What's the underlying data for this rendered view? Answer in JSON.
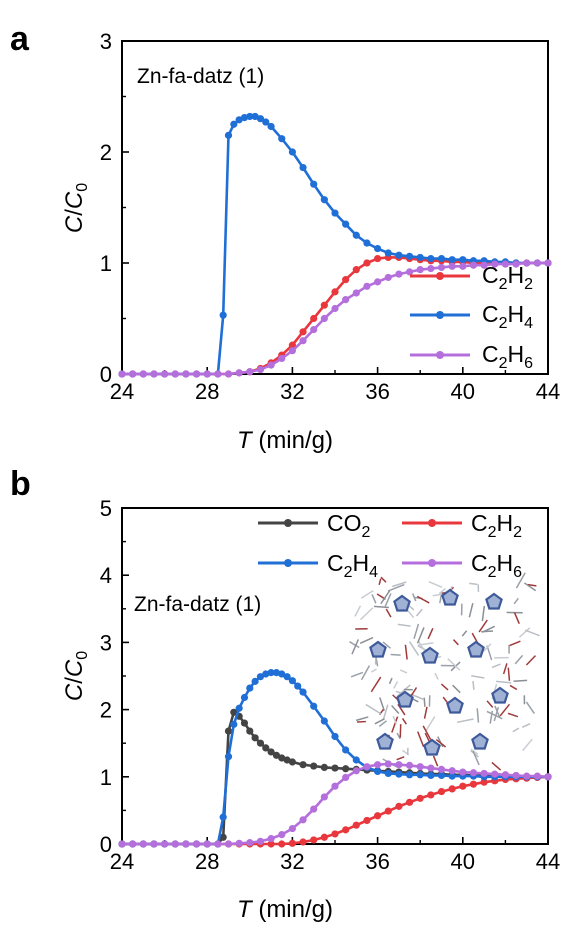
{
  "chart_data": [
    {
      "panel": "a",
      "type": "line",
      "annotation": "Zn-fa-datz (1)",
      "xlabel_italic": "T",
      "xlabel_unit": " (min/g)",
      "ylabel_italic_main": "C",
      "ylabel_italic_sub": "0",
      "xlim": [
        24,
        44
      ],
      "ylim": [
        0,
        3
      ],
      "xticks": [
        "24",
        "28",
        "32",
        "36",
        "40",
        "44"
      ],
      "yticks": [
        "0",
        "1",
        "2",
        "3"
      ],
      "legend_position": "bottom-right",
      "series": [
        {
          "label_main": "C",
          "label_s1": "2",
          "label_mid": "H",
          "label_s2": "2",
          "color": "#e8383d",
          "x": [
            24.0,
            24.5,
            25.0,
            25.5,
            26.0,
            26.5,
            27.0,
            27.5,
            28.0,
            28.5,
            29.0,
            29.5,
            30.0,
            30.5,
            31.0,
            31.5,
            32.0,
            32.5,
            33.0,
            33.5,
            34.0,
            34.5,
            35.0,
            35.5,
            36.0,
            36.5,
            37.0,
            37.5,
            38.0,
            38.5,
            39.0,
            39.5,
            40.0,
            40.5,
            41.0,
            41.5,
            42.0,
            42.5,
            43.0,
            43.5,
            44.0
          ],
          "y": [
            0.0,
            0.0,
            0.0,
            0.0,
            0.0,
            0.0,
            0.0,
            0.0,
            0.0,
            0.0,
            0.0,
            0.01,
            0.02,
            0.05,
            0.1,
            0.17,
            0.26,
            0.38,
            0.5,
            0.62,
            0.74,
            0.85,
            0.94,
            1.0,
            1.04,
            1.05,
            1.05,
            1.04,
            1.03,
            1.02,
            1.02,
            1.01,
            1.01,
            1.0,
            1.0,
            1.0,
            1.0,
            1.0,
            1.0,
            1.0,
            1.0
          ]
        },
        {
          "label_main": "C",
          "label_s1": "2",
          "label_mid": "H",
          "label_s2": "4",
          "color": "#1f6fd6",
          "x": [
            24.0,
            24.5,
            25.0,
            25.5,
            26.0,
            26.5,
            27.0,
            27.5,
            28.0,
            28.5,
            28.75,
            29.0,
            29.25,
            29.5,
            29.75,
            30.0,
            30.25,
            30.5,
            30.75,
            31.0,
            31.5,
            32.0,
            32.5,
            33.0,
            33.5,
            34.0,
            34.5,
            35.0,
            35.5,
            36.0,
            36.5,
            37.0,
            37.5,
            38.0,
            38.5,
            39.0,
            39.5,
            40.0,
            40.5,
            41.0,
            41.5,
            42.0,
            42.5,
            43.0,
            43.5,
            44.0
          ],
          "y": [
            0.0,
            0.0,
            0.0,
            0.0,
            0.0,
            0.0,
            0.0,
            0.0,
            0.0,
            0.0,
            0.53,
            2.15,
            2.25,
            2.29,
            2.31,
            2.32,
            2.32,
            2.3,
            2.27,
            2.23,
            2.12,
            2.0,
            1.86,
            1.71,
            1.57,
            1.45,
            1.35,
            1.25,
            1.18,
            1.13,
            1.09,
            1.07,
            1.06,
            1.05,
            1.04,
            1.04,
            1.03,
            1.03,
            1.02,
            1.02,
            1.01,
            1.01,
            1.0,
            1.0,
            1.0,
            1.0
          ]
        },
        {
          "label_main": "C",
          "label_s1": "2",
          "label_mid": "H",
          "label_s2": "6",
          "color": "#b56fdc",
          "x": [
            24.0,
            24.5,
            25.0,
            25.5,
            26.0,
            26.5,
            27.0,
            27.5,
            28.0,
            28.5,
            29.0,
            29.5,
            30.0,
            30.5,
            31.0,
            31.5,
            32.0,
            32.5,
            33.0,
            33.5,
            34.0,
            34.5,
            35.0,
            35.5,
            36.0,
            36.5,
            37.0,
            37.5,
            38.0,
            38.5,
            39.0,
            39.5,
            40.0,
            40.5,
            41.0,
            41.5,
            42.0,
            42.5,
            43.0,
            43.5,
            44.0
          ],
          "y": [
            0.0,
            0.0,
            0.0,
            0.0,
            0.0,
            0.0,
            0.0,
            0.0,
            0.0,
            0.0,
            0.0,
            0.01,
            0.02,
            0.04,
            0.08,
            0.14,
            0.21,
            0.3,
            0.4,
            0.5,
            0.59,
            0.67,
            0.73,
            0.79,
            0.83,
            0.87,
            0.9,
            0.92,
            0.94,
            0.95,
            0.96,
            0.97,
            0.97,
            0.98,
            0.98,
            0.99,
            0.99,
            0.99,
            1.0,
            1.0,
            1.0
          ]
        }
      ]
    },
    {
      "panel": "b",
      "type": "line",
      "annotation": "Zn-fa-datz (1)",
      "xlabel_italic": "T",
      "xlabel_unit": " (min/g)",
      "ylabel_italic_main": "C",
      "ylabel_italic_sub": "0",
      "xlim": [
        24,
        44
      ],
      "ylim": [
        0,
        5
      ],
      "xticks": [
        "24",
        "28",
        "32",
        "36",
        "40",
        "44"
      ],
      "yticks": [
        "0",
        "1",
        "2",
        "3",
        "4",
        "5"
      ],
      "legend_position": "top",
      "inset": "crystal-structure-image",
      "series": [
        {
          "label_main": "CO",
          "label_s1": "2",
          "label_mid": "",
          "label_s2": "",
          "color": "#444444",
          "x": [
            24.0,
            24.5,
            25.0,
            25.5,
            26.0,
            26.5,
            27.0,
            27.5,
            28.0,
            28.5,
            28.75,
            29.0,
            29.25,
            29.5,
            29.75,
            30.0,
            30.25,
            30.5,
            30.75,
            31.0,
            31.25,
            31.5,
            31.75,
            32.0,
            32.5,
            33.0,
            33.5,
            34.0,
            34.5,
            35.0,
            35.5,
            36.0,
            36.5,
            37.0,
            37.5,
            38.0,
            38.5,
            39.0,
            39.5,
            40.0,
            40.5,
            41.0,
            41.5,
            42.0,
            42.5,
            43.0,
            43.5,
            44.0
          ],
          "y": [
            0.0,
            0.0,
            0.0,
            0.0,
            0.0,
            0.0,
            0.0,
            0.0,
            0.0,
            0.0,
            0.1,
            1.68,
            1.96,
            1.9,
            1.8,
            1.68,
            1.58,
            1.5,
            1.43,
            1.37,
            1.32,
            1.28,
            1.25,
            1.22,
            1.18,
            1.16,
            1.14,
            1.13,
            1.12,
            1.11,
            1.1,
            1.09,
            1.08,
            1.07,
            1.06,
            1.05,
            1.04,
            1.04,
            1.03,
            1.03,
            1.02,
            1.02,
            1.01,
            1.01,
            1.0,
            1.0,
            1.0,
            1.0
          ]
        },
        {
          "label_main": "C",
          "label_s1": "2",
          "label_mid": "H",
          "label_s2": "2",
          "color": "#e8383d",
          "x": [
            24.0,
            24.5,
            25.0,
            25.5,
            26.0,
            26.5,
            27.0,
            27.5,
            28.0,
            28.5,
            29.0,
            29.5,
            30.0,
            30.5,
            31.0,
            31.5,
            32.0,
            32.5,
            33.0,
            33.5,
            34.0,
            34.5,
            35.0,
            35.5,
            36.0,
            36.5,
            37.0,
            37.5,
            38.0,
            38.5,
            39.0,
            39.5,
            40.0,
            40.5,
            41.0,
            41.5,
            42.0,
            42.5,
            43.0,
            43.5,
            44.0
          ],
          "y": [
            0.0,
            0.0,
            0.0,
            0.0,
            0.0,
            0.0,
            0.0,
            0.0,
            0.0,
            0.0,
            0.0,
            0.0,
            0.0,
            0.0,
            0.0,
            0.0,
            0.01,
            0.03,
            0.06,
            0.1,
            0.15,
            0.21,
            0.28,
            0.35,
            0.42,
            0.49,
            0.56,
            0.62,
            0.68,
            0.73,
            0.78,
            0.82,
            0.86,
            0.89,
            0.92,
            0.94,
            0.96,
            0.97,
            0.98,
            0.99,
            1.0
          ]
        },
        {
          "label_main": "C",
          "label_s1": "2",
          "label_mid": "H",
          "label_s2": "4",
          "color": "#1f6fd6",
          "x": [
            24.0,
            24.5,
            25.0,
            25.5,
            26.0,
            26.5,
            27.0,
            27.5,
            28.0,
            28.5,
            28.75,
            29.0,
            29.25,
            29.5,
            29.75,
            30.0,
            30.25,
            30.5,
            30.75,
            31.0,
            31.25,
            31.5,
            31.75,
            32.0,
            32.25,
            32.5,
            33.0,
            33.5,
            34.0,
            34.5,
            35.0,
            35.5,
            36.0,
            36.5,
            37.0,
            37.5,
            38.0,
            38.5,
            39.0,
            39.5,
            40.0,
            40.5,
            41.0,
            41.5,
            42.0,
            42.5,
            43.0,
            43.5,
            44.0
          ],
          "y": [
            0.0,
            0.0,
            0.0,
            0.0,
            0.0,
            0.0,
            0.0,
            0.0,
            0.0,
            0.0,
            0.4,
            1.3,
            1.78,
            2.02,
            2.18,
            2.32,
            2.42,
            2.49,
            2.53,
            2.55,
            2.55,
            2.53,
            2.49,
            2.43,
            2.35,
            2.26,
            2.05,
            1.83,
            1.6,
            1.4,
            1.25,
            1.14,
            1.08,
            1.05,
            1.04,
            1.03,
            1.03,
            1.02,
            1.02,
            1.01,
            1.01,
            1.01,
            1.0,
            1.0,
            1.0,
            1.0,
            1.0,
            1.0,
            1.0
          ]
        },
        {
          "label_main": "C",
          "label_s1": "2",
          "label_mid": "H",
          "label_s2": "6",
          "color": "#b56fdc",
          "x": [
            24.0,
            24.5,
            25.0,
            25.5,
            26.0,
            26.5,
            27.0,
            27.5,
            28.0,
            28.5,
            29.0,
            29.5,
            30.0,
            30.5,
            31.0,
            31.5,
            32.0,
            32.5,
            33.0,
            33.5,
            34.0,
            34.5,
            35.0,
            35.5,
            36.0,
            36.5,
            37.0,
            37.5,
            38.0,
            38.5,
            39.0,
            39.5,
            40.0,
            40.5,
            41.0,
            41.5,
            42.0,
            42.5,
            43.0,
            43.5,
            44.0
          ],
          "y": [
            0.0,
            0.0,
            0.0,
            0.0,
            0.0,
            0.0,
            0.0,
            0.0,
            0.0,
            0.0,
            0.0,
            0.01,
            0.02,
            0.04,
            0.08,
            0.14,
            0.23,
            0.36,
            0.52,
            0.7,
            0.86,
            0.99,
            1.09,
            1.15,
            1.18,
            1.19,
            1.18,
            1.17,
            1.15,
            1.13,
            1.11,
            1.09,
            1.07,
            1.06,
            1.05,
            1.04,
            1.03,
            1.02,
            1.01,
            1.01,
            1.0
          ]
        }
      ]
    }
  ],
  "panels": {
    "a": {
      "tag": "a"
    },
    "b": {
      "tag": "b"
    }
  }
}
